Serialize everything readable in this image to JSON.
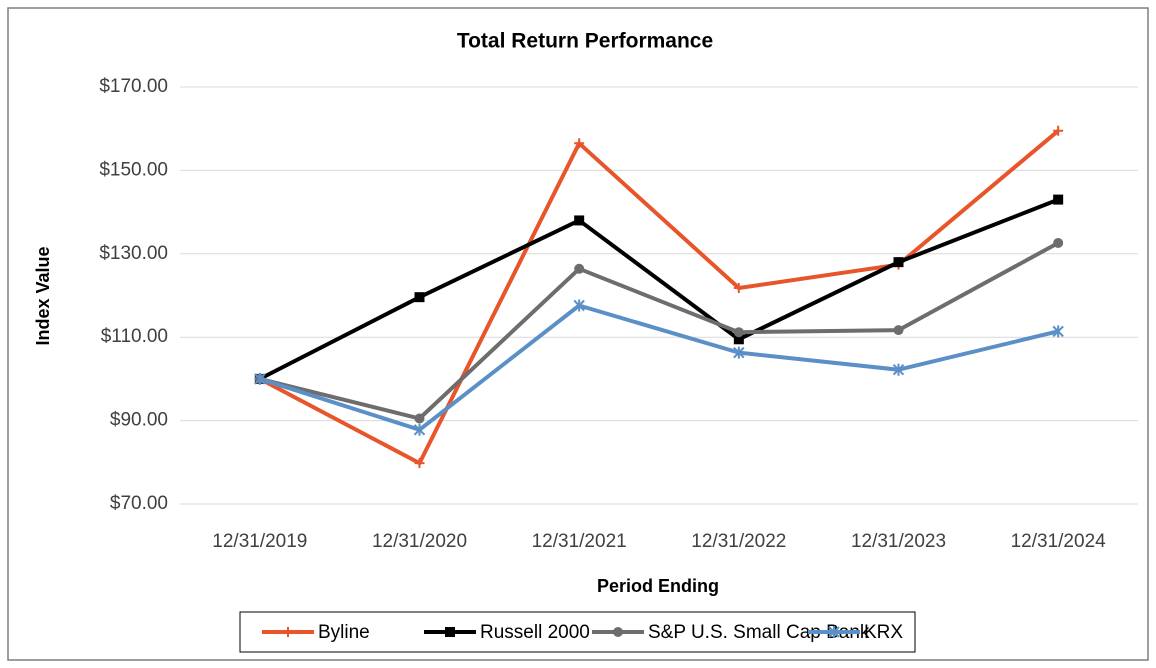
{
  "chart_data": {
    "type": "line",
    "title": "Total Return Performance",
    "x_label": "Period Ending",
    "y_label": "Index Value",
    "categories": [
      "12/31/2019",
      "12/31/2020",
      "12/31/2021",
      "12/31/2022",
      "12/31/2023",
      "12/31/2024"
    ],
    "series": [
      {
        "name": "Byline",
        "color": "#e8552a",
        "marker": "plus",
        "values": [
          100,
          79.8,
          156.5,
          121.8,
          127.4,
          159.5
        ]
      },
      {
        "name": "Russell 2000",
        "color": "#000000",
        "marker": "square",
        "values": [
          100,
          119.6,
          138,
          109.5,
          128,
          143
        ]
      },
      {
        "name": "S&P U.S. Small Cap Bank",
        "color": "#6d6d6d",
        "marker": "circle",
        "values": [
          100,
          90.5,
          126.4,
          111.2,
          111.7,
          132.6
        ]
      },
      {
        "name": "KRX",
        "color": "#5b8fc7",
        "marker": "star",
        "values": [
          100,
          87.8,
          117.6,
          106.3,
          102.2,
          111.4
        ]
      }
    ],
    "ylim": [
      70,
      170
    ],
    "yticks": [
      {
        "value": 70,
        "label": "$70.00"
      },
      {
        "value": 90,
        "label": "$90.00"
      },
      {
        "value": 110,
        "label": "$110.00"
      },
      {
        "value": 130,
        "label": "$130.00"
      },
      {
        "value": 150,
        "label": "$150.00"
      },
      {
        "value": 170,
        "label": "$170.00"
      }
    ],
    "grid": true,
    "legend": "bottom"
  }
}
